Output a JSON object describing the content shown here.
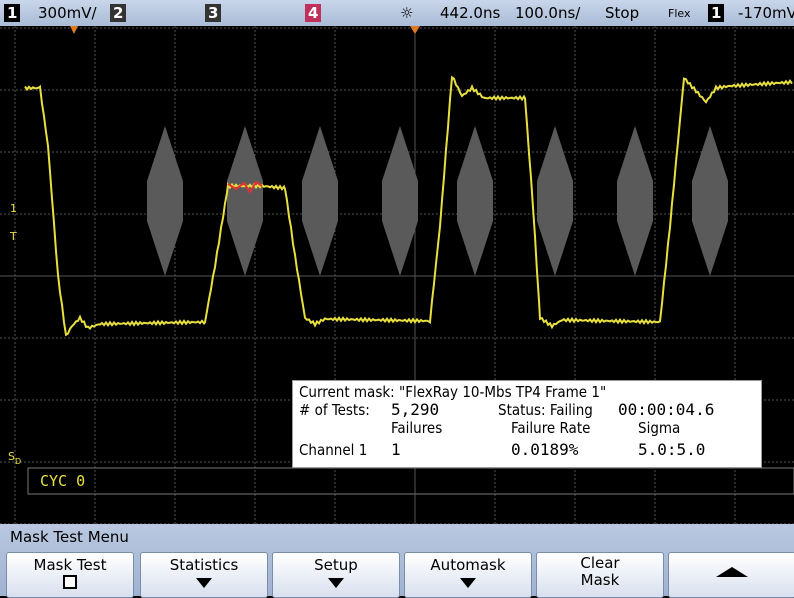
{
  "status_bar": {
    "ch1": "1",
    "ch1_scale": "300mV/",
    "ch2": "2",
    "ch3": "3",
    "ch4": "4",
    "trigger_position": "442.0ns",
    "time_scale": "100.0ns/",
    "run_state": "Stop",
    "trigger_source_type": "Flex",
    "trigger_channel": "1",
    "trigger_level": "-170mV"
  },
  "screen": {
    "channel_marker": "1",
    "trigger_marker": "T",
    "serial_marker": "S",
    "serial_sub": "D",
    "cycle_label": "CYC 0"
  },
  "mask_info": {
    "current_mask": "Current mask: \"FlexRay 10-Mbs TP4 Frame 1\"",
    "tests_label": "# of Tests:",
    "tests_value": "5,290",
    "status": "Status: Failing",
    "elapsed": "00:00:04.6",
    "failures_header": "Failures",
    "failure_rate_header": "Failure Rate",
    "sigma_header": "Sigma",
    "channel": "Channel 1",
    "failures": "1",
    "failure_rate": "0.0189%",
    "sigma": "5.0:5.0"
  },
  "menu": {
    "title": "Mask Test Menu",
    "buttons": [
      "Mask Test",
      "Statistics",
      "Setup",
      "Automask",
      "Clear Mask"
    ]
  }
}
